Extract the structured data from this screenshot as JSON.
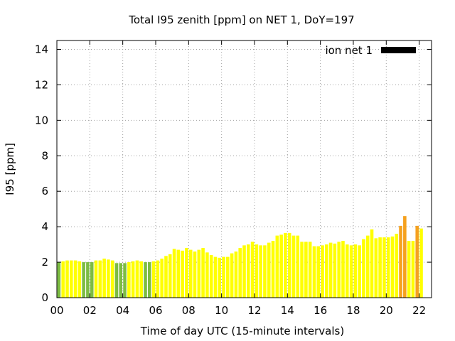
{
  "chart_data": {
    "type": "bar",
    "title": "Total I95 zenith [ppm] on NET 1, DoY=197",
    "xlabel": "Time of day UTC (15-minute intervals)",
    "ylabel": "I95 [ppm]",
    "xlim": [
      0,
      22.75
    ],
    "ylim": [
      0,
      14.5
    ],
    "yticks": [
      0,
      2,
      4,
      6,
      8,
      10,
      12,
      14
    ],
    "xticks": [
      0,
      2,
      4,
      6,
      8,
      10,
      12,
      14,
      16,
      18,
      20,
      22
    ],
    "xtick_labels": [
      "00",
      "02",
      "04",
      "06",
      "08",
      "10",
      "12",
      "14",
      "16",
      "18",
      "20",
      "22"
    ],
    "grid": true,
    "legend": {
      "position": "top-right",
      "entries": [
        {
          "label": "ion net 1",
          "color": "#000000"
        }
      ]
    },
    "colors": {
      "green": "#7cbc42",
      "yellow": "#ffff00",
      "orange": "#f5a11e"
    },
    "bar_interval_hours": 0.25,
    "series": [
      {
        "name": "ion net 1",
        "values": [
          2.0,
          2.05,
          2.1,
          2.1,
          2.1,
          2.05,
          2.0,
          2.0,
          2.0,
          2.1,
          2.1,
          2.2,
          2.15,
          2.1,
          1.95,
          1.95,
          1.95,
          2.0,
          2.05,
          2.1,
          2.05,
          2.0,
          2.0,
          2.05,
          2.1,
          2.2,
          2.35,
          2.45,
          2.75,
          2.7,
          2.65,
          2.8,
          2.7,
          2.6,
          2.7,
          2.8,
          2.55,
          2.4,
          2.3,
          2.25,
          2.3,
          2.3,
          2.5,
          2.6,
          2.8,
          2.95,
          3.0,
          3.15,
          3.0,
          2.95,
          2.95,
          3.1,
          3.2,
          3.5,
          3.55,
          3.65,
          3.65,
          3.5,
          3.5,
          3.15,
          3.15,
          3.15,
          2.9,
          2.9,
          2.95,
          3.0,
          3.1,
          3.05,
          3.15,
          3.2,
          3.0,
          2.95,
          3.0,
          2.95,
          3.3,
          3.5,
          3.85,
          3.35,
          3.4,
          3.4,
          3.4,
          3.45,
          3.6,
          4.05,
          4.6,
          3.2,
          3.2,
          4.05,
          3.9
        ],
        "color_levels": [
          "green",
          "yellow",
          "yellow",
          "yellow",
          "yellow",
          "yellow",
          "green",
          "green",
          "green",
          "yellow",
          "yellow",
          "yellow",
          "yellow",
          "yellow",
          "green",
          "green",
          "green",
          "yellow",
          "yellow",
          "yellow",
          "yellow",
          "green",
          "green",
          "yellow",
          "yellow",
          "yellow",
          "yellow",
          "yellow",
          "yellow",
          "yellow",
          "yellow",
          "yellow",
          "yellow",
          "yellow",
          "yellow",
          "yellow",
          "yellow",
          "yellow",
          "yellow",
          "yellow",
          "yellow",
          "yellow",
          "yellow",
          "yellow",
          "yellow",
          "yellow",
          "yellow",
          "yellow",
          "yellow",
          "yellow",
          "yellow",
          "yellow",
          "yellow",
          "yellow",
          "yellow",
          "yellow",
          "yellow",
          "yellow",
          "yellow",
          "yellow",
          "yellow",
          "yellow",
          "yellow",
          "yellow",
          "yellow",
          "yellow",
          "yellow",
          "yellow",
          "yellow",
          "yellow",
          "yellow",
          "yellow",
          "yellow",
          "yellow",
          "yellow",
          "yellow",
          "yellow",
          "yellow",
          "yellow",
          "yellow",
          "yellow",
          "yellow",
          "yellow",
          "orange",
          "orange",
          "yellow",
          "yellow",
          "orange",
          "yellow"
        ]
      }
    ]
  }
}
